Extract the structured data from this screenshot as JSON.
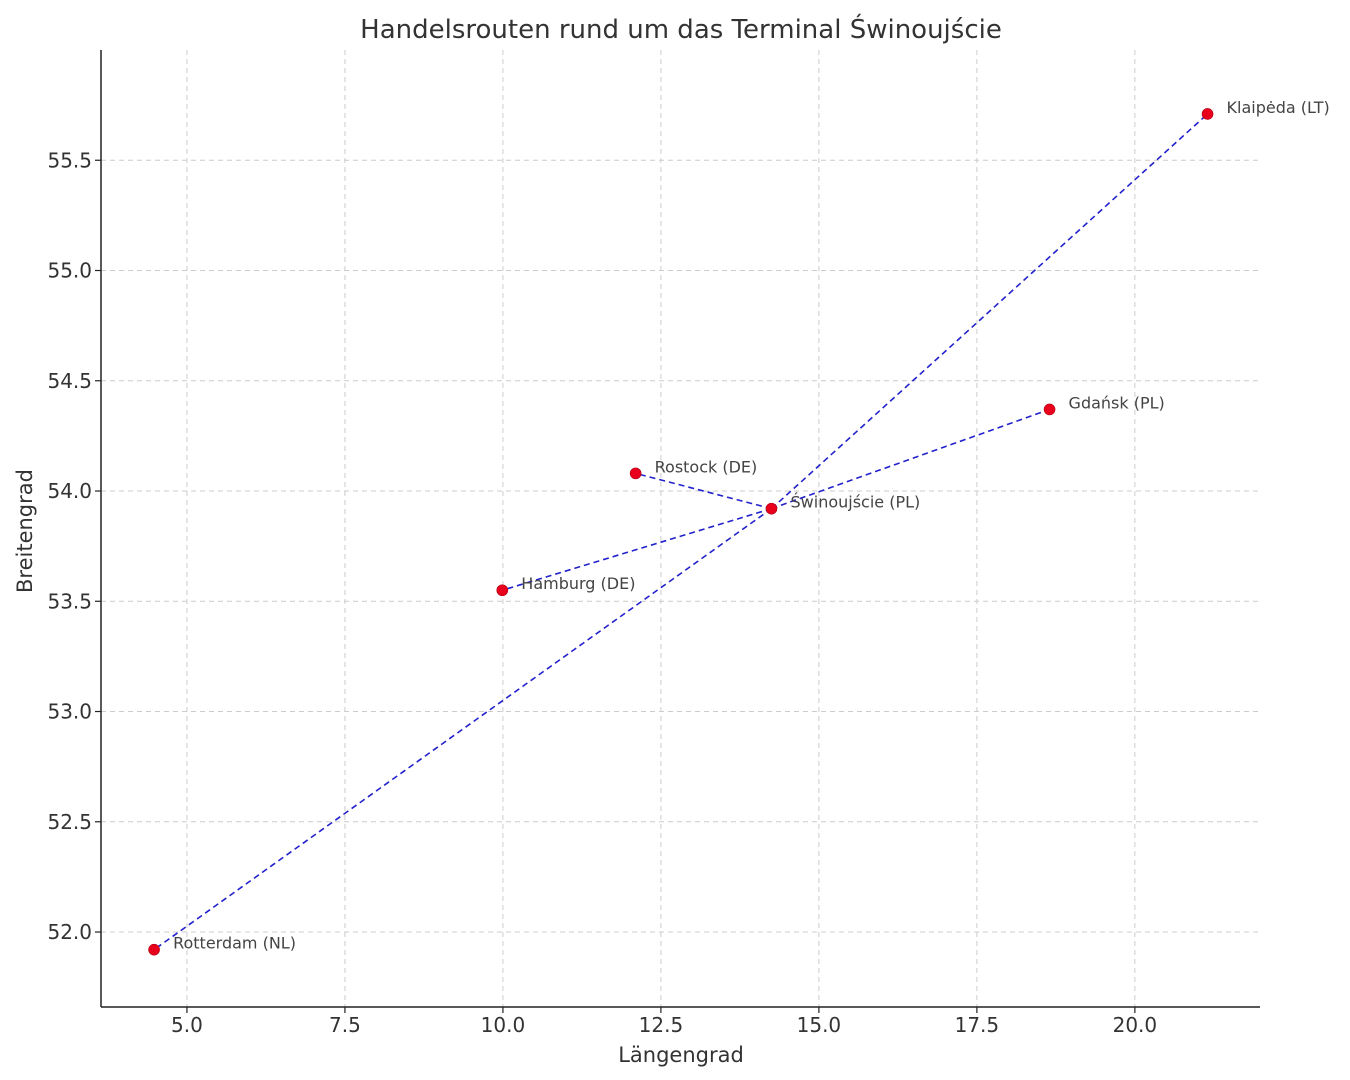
{
  "chart_data": {
    "type": "scatter",
    "title": "Handelsrouten rund um das Terminal Świnoujście",
    "xlabel": "Längengrad",
    "ylabel": "Breitengrad",
    "xlim": [
      3.64,
      21.98
    ],
    "ylim": [
      51.66,
      56.0
    ],
    "xticks": [
      5.0,
      7.5,
      10.0,
      12.5,
      15.0,
      17.5,
      20.0
    ],
    "xtick_labels": [
      "5.0",
      "7.5",
      "10.0",
      "12.5",
      "15.0",
      "17.5",
      "20.0"
    ],
    "yticks": [
      52.0,
      52.5,
      53.0,
      53.5,
      54.0,
      54.5,
      55.0,
      55.5
    ],
    "ytick_labels": [
      "52.0",
      "52.5",
      "53.0",
      "53.5",
      "54.0",
      "54.5",
      "55.0",
      "55.5"
    ],
    "grid": true,
    "hub": "Świnoujście (PL)",
    "points": [
      {
        "label": "Świnoujście (PL)",
        "x": 14.25,
        "y": 53.92
      },
      {
        "label": "Rotterdam (NL)",
        "x": 4.48,
        "y": 51.92
      },
      {
        "label": "Hamburg (DE)",
        "x": 9.99,
        "y": 53.55
      },
      {
        "label": "Rostock (DE)",
        "x": 12.1,
        "y": 54.08
      },
      {
        "label": "Gdańsk (PL)",
        "x": 18.65,
        "y": 54.37
      },
      {
        "label": "Klaipėda (LT)",
        "x": 21.15,
        "y": 55.71
      }
    ],
    "routes": [
      [
        "Świnoujście (PL)",
        "Rotterdam (NL)"
      ],
      [
        "Świnoujście (PL)",
        "Hamburg (DE)"
      ],
      [
        "Świnoujście (PL)",
        "Rostock (DE)"
      ],
      [
        "Świnoujście (PL)",
        "Gdańsk (PL)"
      ],
      [
        "Świnoujście (PL)",
        "Klaipėda (LT)"
      ]
    ],
    "colors": {
      "points": "#e8001c",
      "routes": "#2222cc",
      "grid": "#cccccc"
    }
  }
}
